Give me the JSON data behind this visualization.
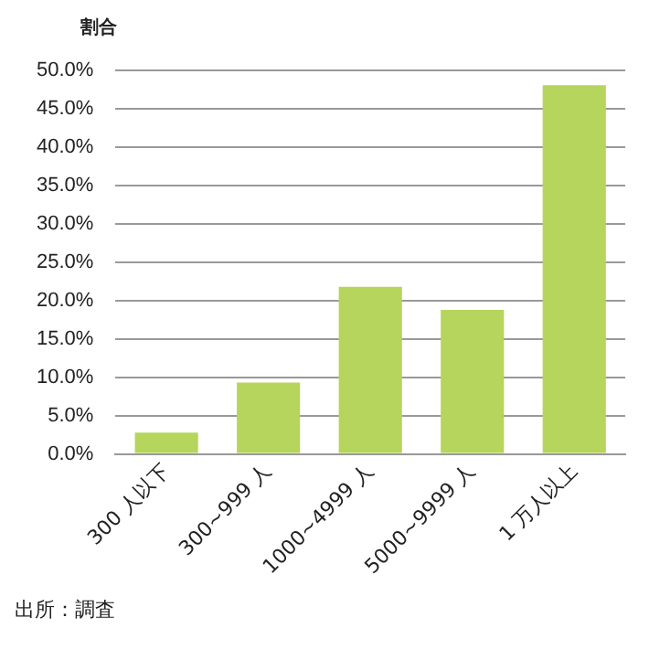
{
  "chart_data": {
    "type": "bar",
    "ylabel": "割合",
    "categories": [
      "300 人以下",
      "300~999 人",
      "1000~4999 人",
      "5000~9999 人",
      "1 万人以上"
    ],
    "values": [
      2.8,
      9.3,
      21.8,
      18.8,
      48.1
    ],
    "color": "#b5d55c",
    "ylim": [
      0,
      50
    ],
    "yticks": [
      {
        "value": 0,
        "label": "0.0%"
      },
      {
        "value": 5,
        "label": "5.0%"
      },
      {
        "value": 10,
        "label": "10.0%"
      },
      {
        "value": 15,
        "label": "15.0%"
      },
      {
        "value": 20,
        "label": "20.0%"
      },
      {
        "value": 25,
        "label": "25.0%"
      },
      {
        "value": 30,
        "label": "30.0%"
      },
      {
        "value": 35,
        "label": "35.0%"
      },
      {
        "value": 40,
        "label": "40.0%"
      },
      {
        "value": 45,
        "label": "45.0%"
      },
      {
        "value": 50,
        "label": "50.0%"
      }
    ],
    "grid": "y",
    "annotations": [
      "出所：調査"
    ]
  }
}
